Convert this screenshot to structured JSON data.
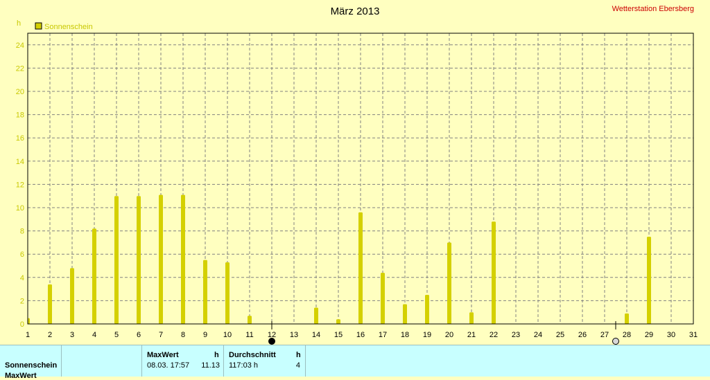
{
  "header": {
    "title": "März 2013",
    "station": "Wetterstation Ebersberg",
    "unit": "h"
  },
  "legend": {
    "label": "Sonnenschein",
    "color": "#d4d000"
  },
  "colors": {
    "background": "#ffffc0",
    "bar": "#d4d000",
    "grid": "#808080",
    "table_background": "#c8ffff"
  },
  "moon_phases": [
    {
      "day": 12,
      "phase": "new-moon"
    },
    {
      "day": 27.5,
      "phase": "full-moon"
    }
  ],
  "chart_data": {
    "type": "bar",
    "title": "März 2013",
    "ylabel": "h",
    "xlabel": "",
    "ylim": [
      0,
      25
    ],
    "yticks": [
      0,
      2,
      4,
      6,
      8,
      10,
      12,
      14,
      16,
      18,
      20,
      22,
      24
    ],
    "grid": true,
    "legend_position": "top-left",
    "categories": [
      "1",
      "2",
      "3",
      "4",
      "5",
      "6",
      "7",
      "8",
      "9",
      "10",
      "11",
      "12",
      "13",
      "14",
      "15",
      "16",
      "17",
      "18",
      "19",
      "20",
      "21",
      "22",
      "23",
      "24",
      "25",
      "26",
      "27",
      "28",
      "29",
      "30",
      "31"
    ],
    "series": [
      {
        "name": "Sonnenschein",
        "values": [
          0.5,
          3.4,
          4.8,
          8.2,
          11.0,
          11.0,
          11.1,
          11.1,
          5.5,
          5.3,
          0.7,
          0.0,
          0.0,
          1.4,
          0.4,
          9.6,
          4.4,
          1.7,
          2.5,
          7.0,
          1.0,
          8.8,
          0.0,
          0.0,
          0.0,
          0.0,
          0.0,
          0.9,
          7.5,
          0.0,
          0.0
        ]
      }
    ]
  },
  "stats": {
    "row_label": "Sonnenschein",
    "row_label_2": "MaxWert",
    "max_header": "MaxWert",
    "max_unit": "h",
    "max_date": "08.03.  17:57",
    "max_value": "11.13",
    "avg_header": "Durchschnitt",
    "avg_unit": "h",
    "avg_total": "117:03 h",
    "avg_value": "4"
  }
}
